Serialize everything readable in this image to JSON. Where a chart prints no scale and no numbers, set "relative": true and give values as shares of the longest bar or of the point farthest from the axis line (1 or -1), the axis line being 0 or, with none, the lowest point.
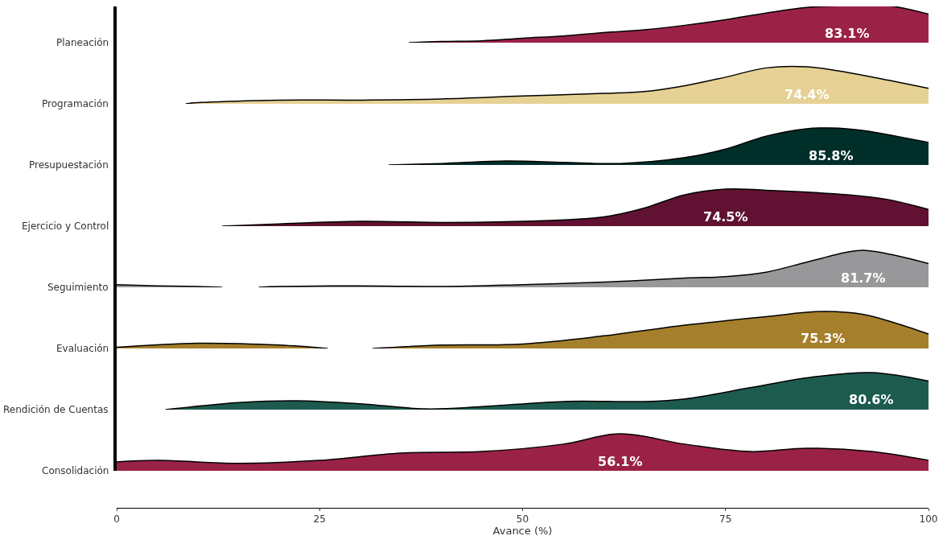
{
  "chart_data": [
    {
      "type": "area",
      "relative": true,
      "line_style": "solid",
      "xlim": [
        0,
        100
      ],
      "tick_labels": false,
      "series": [
        {
          "name": "Planeación",
          "color": "#9b2247",
          "x": [
            36,
            40,
            45,
            50,
            55,
            60,
            65,
            70,
            75,
            80,
            85,
            90,
            95,
            100
          ],
          "values": [
            0,
            0.03,
            0.05,
            0.12,
            0.18,
            0.27,
            0.35,
            0.47,
            0.62,
            0.8,
            0.95,
            1,
            1,
            0.77
          ]
        }
      ],
      "annotations": [
        "83.1%"
      ]
    },
    {
      "type": "area",
      "relative": true,
      "line_style": "solid",
      "xlim": [
        0,
        100
      ],
      "tick_labels": false,
      "series": [
        {
          "name": "Programación",
          "color": "#e6d194",
          "x": [
            8.5,
            10,
            20,
            30,
            40,
            50,
            60,
            65,
            70,
            75,
            80,
            85,
            90,
            95,
            100
          ],
          "values": [
            0,
            0.03,
            0.1,
            0.1,
            0.13,
            0.21,
            0.28,
            0.33,
            0.49,
            0.72,
            0.97,
            1,
            0.85,
            0.64,
            0.42
          ]
        }
      ],
      "annotations": [
        "74.4%"
      ]
    },
    {
      "type": "area",
      "relative": true,
      "line_style": "solid",
      "xlim": [
        0,
        100
      ],
      "tick_labels": false,
      "series": [
        {
          "name": "Presupuestación",
          "color": "#002f2a",
          "x": [
            33.5,
            40,
            48,
            55,
            62,
            70,
            75,
            80,
            85,
            88,
            92,
            96,
            100
          ],
          "values": [
            0,
            0.04,
            0.11,
            0.07,
            0.04,
            0.2,
            0.43,
            0.78,
            0.98,
            1,
            0.93,
            0.78,
            0.61
          ]
        }
      ],
      "annotations": [
        "85.8%"
      ]
    },
    {
      "type": "area",
      "relative": true,
      "line_style": "solid",
      "xlim": [
        0,
        100
      ],
      "tick_labels": false,
      "series": [
        {
          "name": "Ejercicio y Control",
          "color": "#611232",
          "x": [
            13,
            20,
            30,
            40,
            50,
            60,
            65,
            70,
            75,
            80,
            90,
            95,
            100
          ],
          "values": [
            0,
            0.06,
            0.13,
            0.1,
            0.13,
            0.25,
            0.49,
            0.85,
            1,
            0.97,
            0.85,
            0.72,
            0.45
          ]
        }
      ],
      "annotations": [
        "74.5%"
      ]
    },
    {
      "type": "area",
      "relative": true,
      "line_style": "solid",
      "xlim": [
        0,
        100
      ],
      "tick_labels": false,
      "series": [
        {
          "name": "Seguimiento",
          "color": "#98989a",
          "x": [
            0,
            5,
            10,
            13,
            15,
            17.5,
            20,
            30,
            40,
            50,
            60,
            70,
            75,
            80,
            85,
            90,
            92,
            96,
            100
          ],
          "values": [
            0.07,
            0.04,
            0.02,
            0,
            null,
            0,
            0.02,
            0.04,
            0.02,
            0.07,
            0.14,
            0.25,
            0.29,
            0.41,
            0.68,
            0.95,
            1,
            0.86,
            0.64
          ]
        }
      ],
      "annotations": [
        "81.7%"
      ]
    },
    {
      "type": "area",
      "relative": true,
      "line_style": "solid",
      "xlim": [
        0,
        100
      ],
      "tick_labels": false,
      "series": [
        {
          "name": "Evaluación",
          "color": "#a57f2c",
          "x": [
            0,
            10,
            20,
            26,
            29,
            31.5,
            40,
            50,
            60,
            70,
            80,
            87,
            92,
            96,
            100
          ],
          "values": [
            0.03,
            0.14,
            0.09,
            0,
            null,
            0,
            0.09,
            0.12,
            0.34,
            0.63,
            0.86,
            1,
            0.92,
            0.68,
            0.39
          ]
        }
      ],
      "annotations": [
        "75.3%"
      ]
    },
    {
      "type": "area",
      "relative": true,
      "line_style": "solid",
      "xlim": [
        0,
        100
      ],
      "tick_labels": false,
      "series": [
        {
          "name": "Rendición de Cuentas",
          "color": "#1e5b4f",
          "x": [
            6,
            15,
            22,
            30,
            38,
            45,
            55,
            65,
            70,
            78,
            85,
            93,
            100
          ],
          "values": [
            0,
            0.19,
            0.24,
            0.16,
            0.02,
            0.08,
            0.22,
            0.22,
            0.29,
            0.59,
            0.86,
            1,
            0.77
          ]
        }
      ],
      "annotations": [
        "80.6%"
      ]
    },
    {
      "type": "area",
      "relative": true,
      "line_style": "solid",
      "xlabel": "Avance (%)",
      "xlim": [
        0,
        100
      ],
      "xticks": [
        0,
        25,
        50,
        75,
        100
      ],
      "tick_labels": "x",
      "series": [
        {
          "name": "Consolidación",
          "color": "#9b2247",
          "x": [
            0,
            5,
            15,
            25,
            35,
            45,
            55,
            62,
            70,
            78,
            85,
            93,
            100
          ],
          "values": [
            0.24,
            0.28,
            0.2,
            0.28,
            0.48,
            0.52,
            0.72,
            1,
            0.72,
            0.52,
            0.61,
            0.52,
            0.28
          ]
        }
      ],
      "annotations": [
        "56.1%"
      ]
    }
  ]
}
